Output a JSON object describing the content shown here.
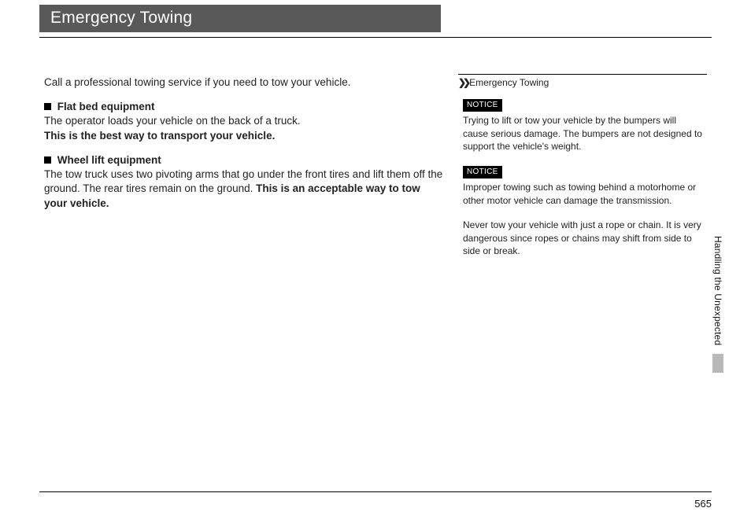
{
  "header": {
    "title": "Emergency Towing"
  },
  "main": {
    "intro": "Call a professional towing service if you need to tow your vehicle.",
    "section1": {
      "heading": "Flat bed equipment",
      "body": "The operator loads your vehicle on the back of a truck.",
      "emphasis": "This is the best way to transport your vehicle."
    },
    "section2": {
      "heading": "Wheel lift equipment",
      "body_pre": "The tow truck uses two pivoting arms that go under the front tires and lift them off the ground. The rear tires remain on the ground. ",
      "emphasis": "This is an acceptable way to tow your vehicle."
    }
  },
  "sidebar": {
    "title": "Emergency Towing",
    "notice_label": "NOTICE",
    "notice1": "Trying to lift or tow your vehicle by the bumpers will cause serious damage. The bumpers are not designed to support the vehicle's weight.",
    "notice2": "Improper towing such as towing behind a motorhome or other motor vehicle can damage the transmission.",
    "para3": "Never tow your vehicle with just a rope or chain. It is very dangerous since ropes or chains may shift from side to side or break."
  },
  "section_tab": "Handling the Unexpected",
  "page_number": "565",
  "colors": {
    "title_bg": "#595959",
    "tab_block": "#b8b8b8"
  }
}
